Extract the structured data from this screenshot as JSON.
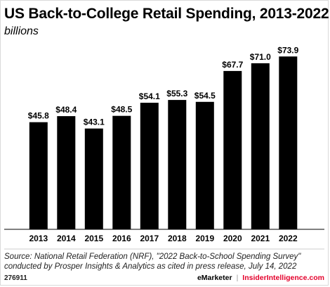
{
  "title": "US Back-to-College Retail Spending, 2013-2022",
  "subtitle": "billions",
  "source_line1": "Source: National Retail Federation (NRF), \"2022 Back-to-School Spending Survey\"",
  "source_line2": "conducted by Prosper Insights & Analytics as cited in press release, July 14, 2022",
  "footer_id": "276911",
  "footer_brand_left": "eMarketer",
  "footer_brand_sep": "|",
  "footer_brand_right": "InsiderIntelligence.com",
  "colors": {
    "bar": "#000000",
    "brand_accent": "#e4002b",
    "baseline": "#000000"
  },
  "chart_data": {
    "type": "bar",
    "title": "US Back-to-College Retail Spending, 2013-2022",
    "subtitle": "billions",
    "categories": [
      "2013",
      "2014",
      "2015",
      "2016",
      "2017",
      "2018",
      "2019",
      "2020",
      "2021",
      "2022"
    ],
    "values": [
      45.8,
      48.4,
      43.1,
      48.5,
      54.1,
      55.3,
      54.5,
      67.7,
      71.0,
      73.9
    ],
    "value_labels": [
      "$45.8",
      "$48.4",
      "$43.1",
      "$48.5",
      "$54.1",
      "$55.3",
      "$54.5",
      "$67.7",
      "$71.0",
      "$73.9"
    ],
    "xlabel": "",
    "ylabel": "",
    "ylim": [
      0,
      80
    ],
    "grid": false,
    "legend": "none"
  }
}
